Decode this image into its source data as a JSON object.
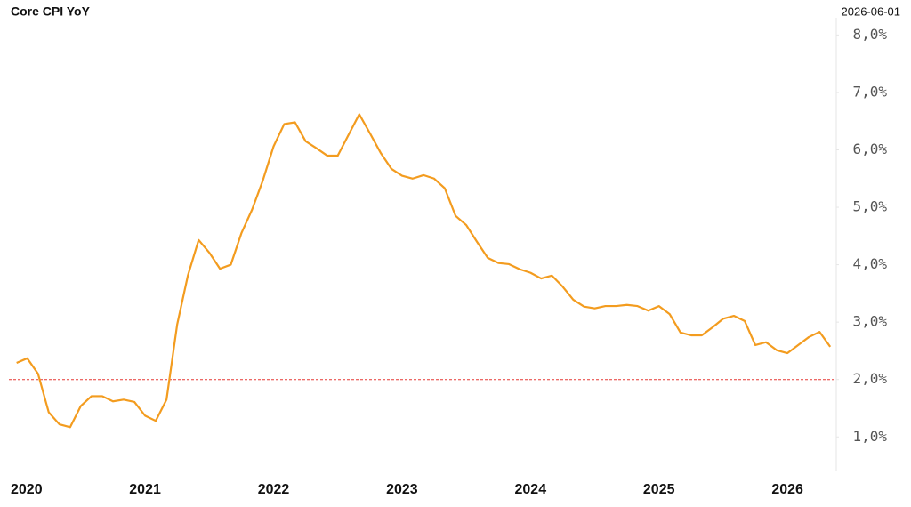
{
  "chart_data": {
    "type": "line",
    "title": "Core CPI YoY",
    "date_label": "2026-06-01",
    "x": [
      2020,
      2020.083,
      2020.167,
      2020.25,
      2020.333,
      2020.417,
      2020.5,
      2020.583,
      2020.667,
      2020.75,
      2020.833,
      2020.917,
      2021,
      2021.083,
      2021.167,
      2021.25,
      2021.333,
      2021.417,
      2021.5,
      2021.583,
      2021.667,
      2021.75,
      2021.833,
      2021.917,
      2022,
      2022.083,
      2022.167,
      2022.25,
      2022.333,
      2022.417,
      2022.5,
      2022.583,
      2022.667,
      2022.75,
      2022.833,
      2022.917,
      2023,
      2023.083,
      2023.167,
      2023.25,
      2023.333,
      2023.417,
      2023.5,
      2023.583,
      2023.667,
      2023.75,
      2023.833,
      2023.917,
      2024,
      2024.083,
      2024.167,
      2024.25,
      2024.333,
      2024.417,
      2024.5,
      2024.583,
      2024.667,
      2024.75,
      2024.833,
      2024.917,
      2025,
      2025.083,
      2025.167,
      2025.25,
      2025.333,
      2025.417,
      2025.5,
      2025.583,
      2025.667,
      2025.75,
      2025.833,
      2025.917,
      2026,
      2026.083,
      2026.167,
      2026.25,
      2026.333
    ],
    "series": [
      {
        "name": "Core CPI YoY",
        "color": "#f39c1f",
        "values": [
          2.29,
          2.37,
          2.1,
          1.43,
          1.22,
          1.17,
          1.54,
          1.71,
          1.71,
          1.62,
          1.65,
          1.61,
          1.37,
          1.28,
          1.65,
          2.96,
          3.81,
          4.43,
          4.21,
          3.93,
          4.0,
          4.55,
          4.96,
          5.47,
          6.06,
          6.45,
          6.48,
          6.15,
          6.03,
          5.9,
          5.9,
          6.26,
          6.62,
          6.29,
          5.95,
          5.67,
          5.55,
          5.5,
          5.56,
          5.5,
          5.33,
          4.85,
          4.69,
          4.4,
          4.12,
          4.03,
          4.01,
          3.92,
          3.86,
          3.76,
          3.81,
          3.62,
          3.39,
          3.27,
          3.24,
          3.28,
          3.28,
          3.3,
          3.28,
          3.2,
          3.28,
          3.14,
          2.82,
          2.77,
          2.77,
          2.91,
          3.06,
          3.11,
          3.02,
          2.6,
          2.65,
          2.51,
          2.46,
          2.6,
          2.74,
          2.83,
          2.57
        ]
      }
    ],
    "reference_line": {
      "value": 2,
      "color": "#e53935"
    },
    "xlim": [
      2019.94,
      2026.38
    ],
    "xticks": [
      2020,
      2021,
      2022,
      2023,
      2024,
      2025,
      2026
    ],
    "ylim": [
      0.4,
      8.3
    ],
    "yticks": [
      {
        "value": 1,
        "label": "1,0%"
      },
      {
        "value": 2,
        "label": "2,0%"
      },
      {
        "value": 3,
        "label": "3,0%"
      },
      {
        "value": 4,
        "label": "4,0%"
      },
      {
        "value": 5,
        "label": "5,0%"
      },
      {
        "value": 6,
        "label": "6,0%"
      },
      {
        "value": 7,
        "label": "7,0%"
      },
      {
        "value": 8,
        "label": "8,0%"
      }
    ],
    "grid": false
  }
}
